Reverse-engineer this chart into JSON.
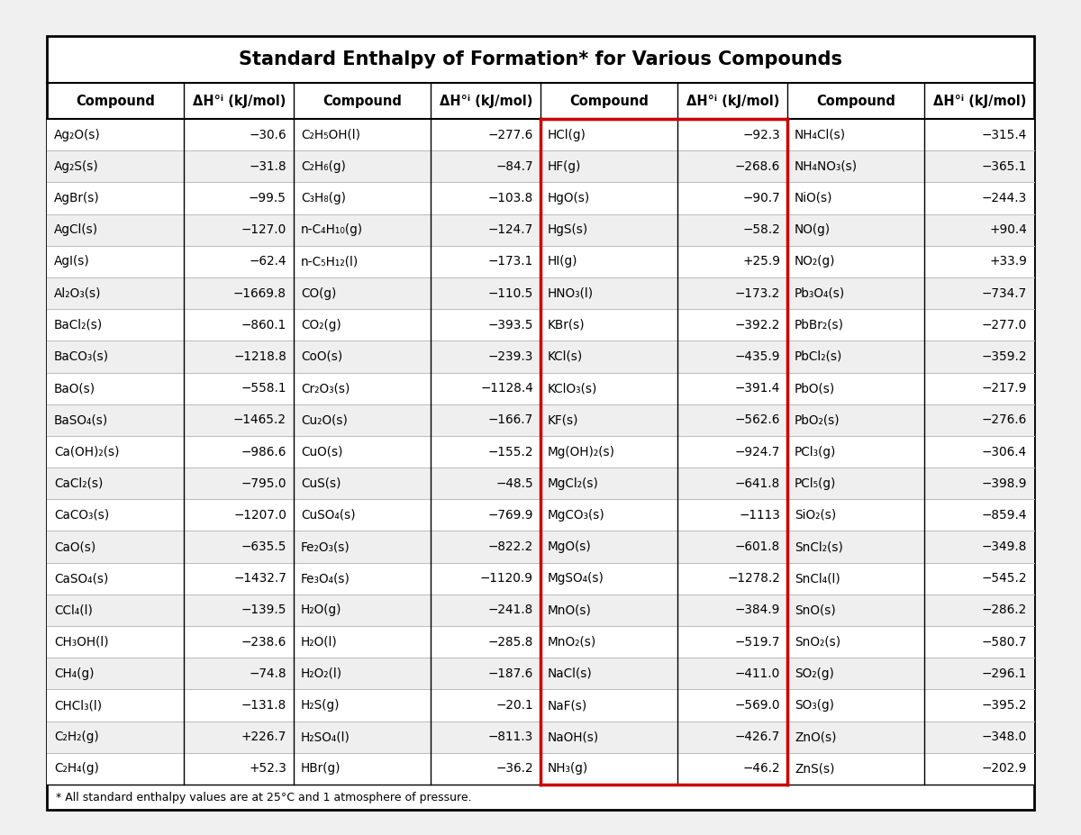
{
  "title": "Standard Enthalpy of Formation* for Various Compounds",
  "footnote": "* All standard enthalpy values are at 25°C and 1 atmosphere of pressure.",
  "columns": [
    [
      "Ag₂O(s)",
      "Ag₂S(s)",
      "AgBr(s)",
      "AgCl(s)",
      "AgI(s)",
      "Al₂O₃(s)",
      "BaCl₂(s)",
      "BaCO₃(s)",
      "BaO(s)",
      "BaSO₄(s)",
      "Ca(OH)₂(s)",
      "CaCl₂(s)",
      "CaCO₃(s)",
      "CaO(s)",
      "CaSO₄(s)",
      "CCl₄(l)",
      "CH₃OH(l)",
      "CH₄(g)",
      "CHCl₃(l)",
      "C₂H₂(g)",
      "C₂H₄(g)"
    ],
    [
      "−30.6",
      "−31.8",
      "−99.5",
      "−127.0",
      "−62.4",
      "−1669.8",
      "−860.1",
      "−1218.8",
      "−558.1",
      "−1465.2",
      "−986.6",
      "−795.0",
      "−1207.0",
      "−635.5",
      "−1432.7",
      "−139.5",
      "−238.6",
      "−74.8",
      "−131.8",
      "+226.7",
      "+52.3"
    ],
    [
      "C₂H₅OH(l)",
      "C₂H₆(g)",
      "C₃H₈(g)",
      "n-C₄H₁₀(g)",
      "n-C₅H₁₂(l)",
      "CO(g)",
      "CO₂(g)",
      "CoO(s)",
      "Cr₂O₃(s)",
      "Cu₂O(s)",
      "CuO(s)",
      "CuS(s)",
      "CuSO₄(s)",
      "Fe₂O₃(s)",
      "Fe₃O₄(s)",
      "H₂O(g)",
      "H₂O(l)",
      "H₂O₂(l)",
      "H₂S(g)",
      "H₂SO₄(l)",
      "HBr(g)"
    ],
    [
      "−277.6",
      "−84.7",
      "−103.8",
      "−124.7",
      "−173.1",
      "−110.5",
      "−393.5",
      "−239.3",
      "−1128.4",
      "−166.7",
      "−155.2",
      "−48.5",
      "−769.9",
      "−822.2",
      "−1120.9",
      "−241.8",
      "−285.8",
      "−187.6",
      "−20.1",
      "−811.3",
      "−36.2"
    ],
    [
      "HCl(g)",
      "HF(g)",
      "HgO(s)",
      "HgS(s)",
      "HI(g)",
      "HNO₃(l)",
      "KBr(s)",
      "KCl(s)",
      "KClO₃(s)",
      "KF(s)",
      "Mg(OH)₂(s)",
      "MgCl₂(s)",
      "MgCO₃(s)",
      "MgO(s)",
      "MgSO₄(s)",
      "MnO(s)",
      "MnO₂(s)",
      "NaCl(s)",
      "NaF(s)",
      "NaOH(s)",
      "NH₃(g)"
    ],
    [
      "−92.3",
      "−268.6",
      "−90.7",
      "−58.2",
      "+25.9",
      "−173.2",
      "−392.2",
      "−435.9",
      "−391.4",
      "−562.6",
      "−924.7",
      "−641.8",
      "−1113",
      "−601.8",
      "−1278.2",
      "−384.9",
      "−519.7",
      "−411.0",
      "−569.0",
      "−426.7",
      "−46.2"
    ],
    [
      "NH₄Cl(s)",
      "NH₄NO₃(s)",
      "NiO(s)",
      "NO(g)",
      "NO₂(g)",
      "Pb₃O₄(s)",
      "PbBr₂(s)",
      "PbCl₂(s)",
      "PbO(s)",
      "PbO₂(s)",
      "PCl₃(g)",
      "PCl₅(g)",
      "SiO₂(s)",
      "SnCl₂(s)",
      "SnCl₄(l)",
      "SnO(s)",
      "SnO₂(s)",
      "SO₂(g)",
      "SO₃(g)",
      "ZnO(s)",
      "ZnS(s)"
    ],
    [
      "−315.4",
      "−365.1",
      "−244.3",
      "+90.4",
      "+33.9",
      "−734.7",
      "−277.0",
      "−359.2",
      "−217.9",
      "−276.6",
      "−306.4",
      "−398.9",
      "−859.4",
      "−349.8",
      "−545.2",
      "−286.2",
      "−580.7",
      "−296.1",
      "−395.2",
      "−348.0",
      "−202.9"
    ]
  ],
  "bg_color": "#f0f0f0",
  "table_bg": "#ffffff",
  "grid_color": "#bbbbbb",
  "red_line_color": "#cc0000",
  "title_fontsize": 15,
  "header_fontsize": 10.5,
  "data_fontsize": 9.8
}
